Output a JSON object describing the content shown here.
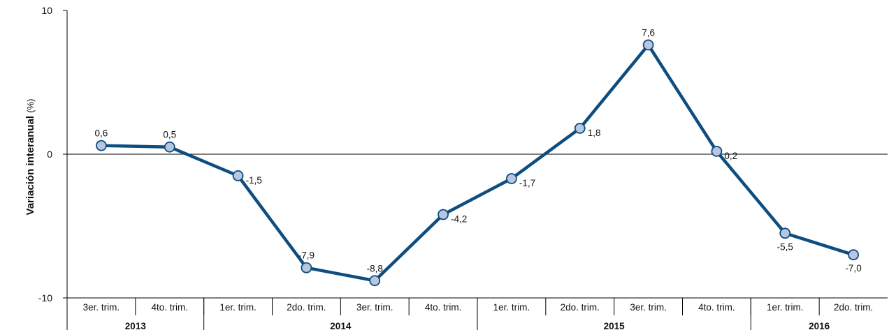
{
  "chart_data": {
    "type": "line",
    "ylabel": "Variación interanual",
    "ylabel_unit": "(%)",
    "ylim": [
      -10,
      10
    ],
    "yticks": [
      10,
      0,
      -10
    ],
    "grid": false,
    "categories": [
      "3er. trim.",
      "4to. trim.",
      "1er. trim.",
      "2do. trim.",
      "3er. trim.",
      "4to. trim.",
      "1er. trim.",
      "2do. trim.",
      "3er. trim.",
      "4to. trim.",
      "1er. trim.",
      "2do. trim."
    ],
    "year_groups": [
      {
        "label": "2013",
        "count": 2
      },
      {
        "label": "2014",
        "count": 4
      },
      {
        "label": "2015",
        "count": 4
      },
      {
        "label": "2016",
        "count": 2
      }
    ],
    "series": [
      {
        "values": [
          0.6,
          0.5,
          -1.5,
          -7.9,
          -8.8,
          -4.2,
          -1.7,
          1.8,
          7.6,
          0.2,
          -5.5,
          -7.0
        ],
        "labels": [
          "0,6",
          "0,5",
          "-1,5",
          "-7,9",
          "-8,8",
          "-4,2",
          "-1,7",
          "1,8",
          "7,6",
          "0,2",
          "-5,5",
          "-7,0"
        ],
        "label_positions": [
          "above",
          "above",
          "right",
          "above",
          "above",
          "right",
          "right",
          "right",
          "above",
          "right",
          "below",
          "below"
        ]
      }
    ],
    "colors": {
      "line": "#0e4d7f",
      "marker_fill": "#b8c6e0",
      "marker_stroke": "#0e4d7f",
      "axis": "#000000"
    }
  }
}
